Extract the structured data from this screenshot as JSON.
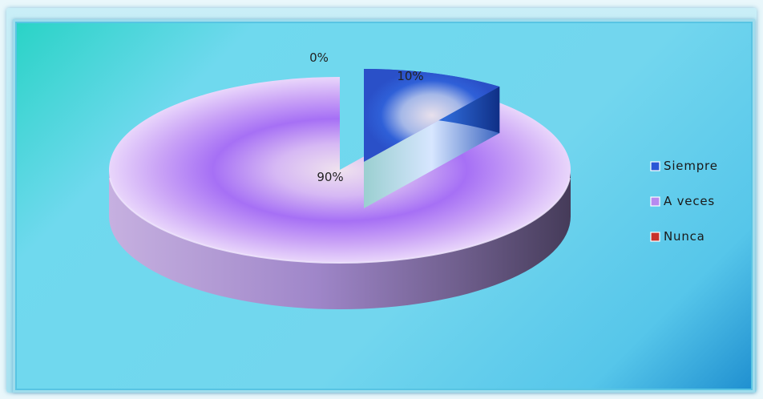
{
  "chart_data": {
    "type": "pie",
    "categories": [
      "Siempre",
      "A veces",
      "Nunca"
    ],
    "values": [
      10,
      90,
      0
    ],
    "data_labels": [
      "10%",
      "90%",
      "0%"
    ],
    "colors": [
      "#2a56d6",
      "#b68af0",
      "#c8312b"
    ],
    "legend": [
      "Siempre",
      "A veces",
      "Nunca"
    ],
    "legend_position": "right",
    "style": "3d-exploded",
    "title": "",
    "exploded_category": "Siempre"
  }
}
